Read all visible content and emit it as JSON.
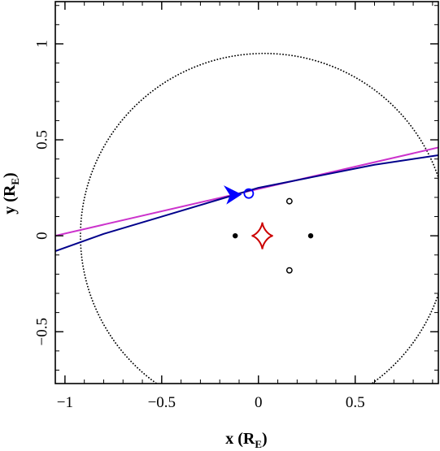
{
  "chart_data": {
    "type": "line",
    "title": "",
    "xlabel": {
      "main": "x (R",
      "sub": "E",
      "close": ")"
    },
    "ylabel": {
      "main": "y (R",
      "sub": "E",
      "close": ")"
    },
    "xlim": [
      -1.05,
      0.93
    ],
    "ylim": [
      -0.77,
      1.22
    ],
    "xticks": [
      {
        "v": -1,
        "label": "−1"
      },
      {
        "v": -0.5,
        "label": "−0.5"
      },
      {
        "v": 0,
        "label": "0"
      },
      {
        "v": 0.5,
        "label": "0.5"
      }
    ],
    "yticks": [
      {
        "v": -0.5,
        "label": "−0.5"
      },
      {
        "v": 0,
        "label": "0"
      },
      {
        "v": 0.5,
        "label": "0.5"
      },
      {
        "v": 1,
        "label": "1"
      }
    ],
    "einstein_ring": {
      "cx": 0.03,
      "cy": 0.0,
      "r": 0.95,
      "color": "#000000",
      "style": "dotted"
    },
    "source_trajectory": {
      "color": "#cc33cc",
      "x": [
        -1.05,
        0.93
      ],
      "y": [
        0.0,
        0.46
      ]
    },
    "lens_trajectory": {
      "color": "#00008b",
      "x": [
        -1.05,
        -0.8,
        -0.5,
        -0.2,
        0.0,
        0.3,
        0.6,
        0.93
      ],
      "y": [
        -0.08,
        0.01,
        0.1,
        0.19,
        0.25,
        0.31,
        0.37,
        0.42
      ]
    },
    "lens_positions": [
      {
        "x": -0.12,
        "y": 0.0
      },
      {
        "x": 0.27,
        "y": 0.0
      }
    ],
    "image_positions": [
      {
        "x": 0.16,
        "y": 0.18
      },
      {
        "x": 0.16,
        "y": -0.18
      }
    ],
    "caustic": {
      "color": "#cc0000",
      "cx": 0.02,
      "cy": 0.0,
      "rx": 0.055,
      "ry": 0.07
    },
    "source_marker": {
      "x": -0.05,
      "y": 0.22,
      "color": "#0000ff"
    },
    "arrow": {
      "x": -0.09,
      "y": 0.215,
      "color": "#0000ff"
    }
  }
}
